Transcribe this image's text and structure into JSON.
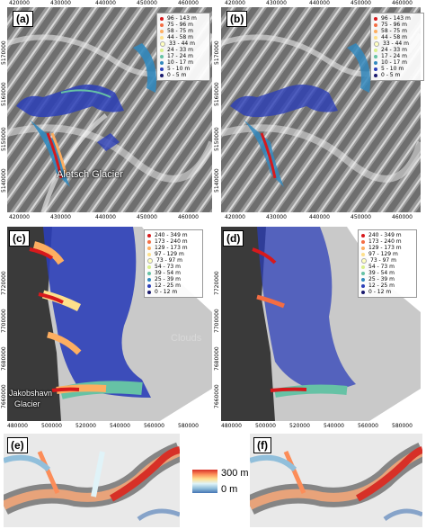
{
  "panels": {
    "a": {
      "label": "(a)",
      "annotation": "Aletsch Glacier"
    },
    "b": {
      "label": "(b)"
    },
    "c": {
      "label": "(c)",
      "annotation_line1": "Jakobshavn",
      "annotation_line2": "Glacier",
      "clouds_text": "Clouds"
    },
    "d": {
      "label": "(d)"
    },
    "e": {
      "label": "(e)"
    },
    "f": {
      "label": "(f)"
    }
  },
  "legend_top": {
    "items": [
      "96 - 143 m",
      "75 - 96 m",
      "58 - 75 m",
      "44 - 58 m",
      "33 - 44 m",
      "24 - 33 m",
      "17 - 24 m",
      "10 - 17 m",
      "5 - 10 m",
      "0 - 5 m"
    ],
    "colors": [
      "#d7191c",
      "#f46d43",
      "#fdae61",
      "#fee08b",
      "#ffffbf",
      "#d9ef8b",
      "#66c2a5",
      "#3288bd",
      "#2c3fb8",
      "#1a1a6e"
    ]
  },
  "legend_mid": {
    "items": [
      "240 - 349 m",
      "173 - 240 m",
      "129 - 173 m",
      "97 - 129 m",
      "73 - 97 m",
      "54 - 73 m",
      "39 - 54 m",
      "25 - 39 m",
      "12 - 25 m",
      "0 - 12 m"
    ],
    "colors": [
      "#d7191c",
      "#f46d43",
      "#fdae61",
      "#fee08b",
      "#ffffbf",
      "#d9ef8b",
      "#66c2a5",
      "#3288bd",
      "#2c3fb8",
      "#1a1a6e"
    ]
  },
  "legend_mid_d": {
    "items": [
      "240 - 349 m",
      "173 - 240 m",
      "129 - 173 m",
      "97 - 129 m",
      "73 - 97 m",
      "54 - 73 m",
      "39 - 54 m",
      "25 - 39 m",
      "12 - 25 m",
      "0 - 12 m"
    ]
  },
  "axes_top": {
    "x_ticks_top": [
      "420000",
      "430000",
      "440000",
      "450000",
      "460000"
    ],
    "x_ticks_bottom": [
      "420000",
      "430000",
      "440000",
      "450000",
      "460000"
    ],
    "y_ticks": [
      "5170000",
      "5160000",
      "5150000",
      "5140000"
    ]
  },
  "axes_mid": {
    "x_ticks": [
      "480000",
      "500000",
      "520000",
      "540000",
      "560000",
      "580000"
    ],
    "y_ticks": [
      "7720000",
      "7700000",
      "7680000",
      "7660000"
    ]
  },
  "colorbar": {
    "max_label": "300 m",
    "min_label": "0 m"
  }
}
